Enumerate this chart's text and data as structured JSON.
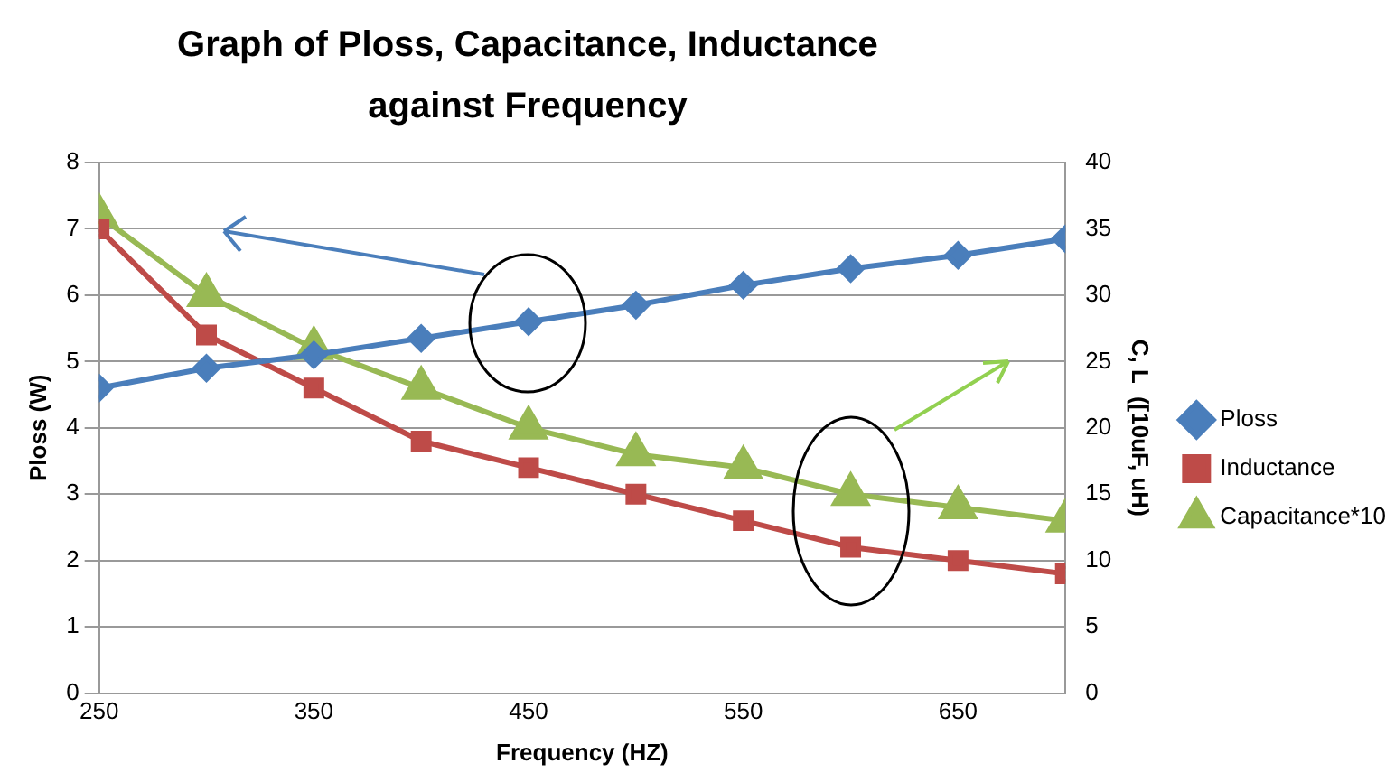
{
  "chart_data": {
    "type": "line",
    "title": "Graph of Ploss, Capacitance, Inductance against Frequency",
    "xlabel": "Frequency (HZ)",
    "ylabel": "Ploss (W)",
    "y2label": "C, L  ([10uF, uH)",
    "x": [
      250,
      300,
      350,
      400,
      450,
      500,
      550,
      600,
      650,
      700
    ],
    "xlim": [
      250,
      700
    ],
    "xticks": [
      250,
      350,
      450,
      550,
      650
    ],
    "ylim": [
      0,
      8
    ],
    "yticks": [
      0,
      1,
      2,
      3,
      4,
      5,
      6,
      7,
      8
    ],
    "y2lim": [
      0,
      40
    ],
    "y2ticks": [
      0,
      5,
      10,
      15,
      20,
      25,
      30,
      35,
      40
    ],
    "grid": "y",
    "legend": "right",
    "series": [
      {
        "name": "Ploss",
        "color": "#4a7ebb",
        "marker": "diamond",
        "values": [
          4.6,
          4.9,
          5.1,
          5.35,
          5.6,
          5.85,
          6.15,
          6.4,
          6.6,
          6.85
        ]
      },
      {
        "name": "Inductance",
        "color": "#be4b48",
        "marker": "square",
        "axis": "y2",
        "values": [
          35,
          27,
          23,
          19,
          17,
          15,
          13,
          11,
          10,
          9
        ]
      },
      {
        "name": "Capacitance*10",
        "color": "#98b954",
        "marker": "triangle",
        "axis": "y2",
        "values": [
          36,
          30,
          26,
          23,
          20,
          18,
          17,
          15,
          14,
          13
        ]
      }
    ]
  }
}
